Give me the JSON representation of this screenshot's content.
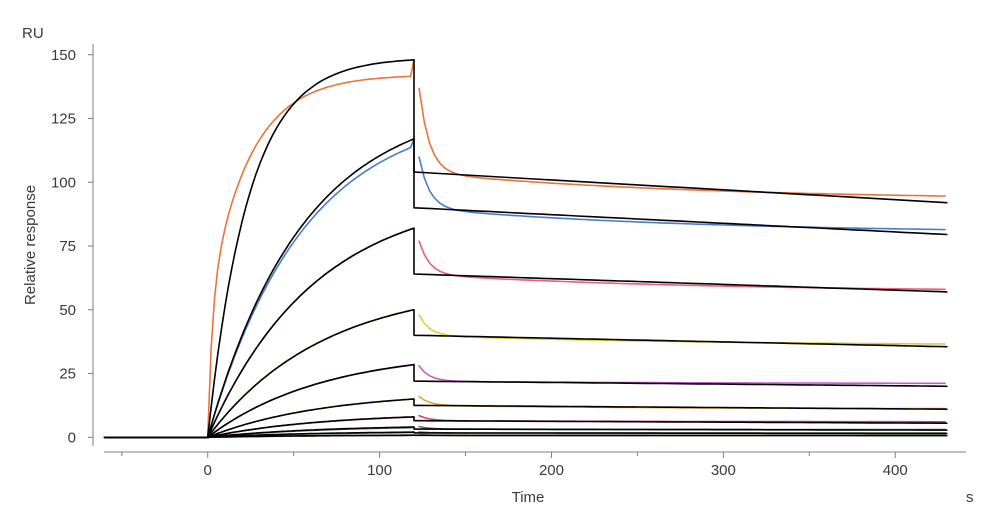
{
  "chart_data": {
    "type": "line",
    "title": "",
    "xlabel": "Time",
    "ylabel": "Relative response",
    "x_unit": "s",
    "y_unit": "RU",
    "xlim": [
      -65,
      440
    ],
    "ylim": [
      -5,
      155
    ],
    "x_ticks": [
      0,
      100,
      200,
      300,
      400
    ],
    "x_minor_ticks": [
      -50,
      50,
      150,
      250,
      350
    ],
    "y_ticks": [
      0,
      25,
      50,
      75,
      100,
      125,
      150
    ],
    "grid": false,
    "legend": "none",
    "association_start": 0,
    "association_end": 120,
    "curve_end": 430,
    "baseline_start": -60,
    "series": [
      {
        "color": "#e8743b",
        "fit_color": "#000000",
        "rmax": 139,
        "kobs": 0.042,
        "plateau_end": 93,
        "fit_plateau": 104,
        "fit_end": 92,
        "peak": 148,
        "spike": 137
      },
      {
        "color": "#4a7cc9",
        "fit_color": "#000000",
        "rmax": 129,
        "kobs": 0.018,
        "plateau_end": 80,
        "fit_plateau": 90,
        "fit_end": 79.5,
        "peak": 117,
        "spike": 110
      },
      {
        "color": "#e8607a",
        "fit_color": "#000000",
        "rmax": 96,
        "kobs": 0.016,
        "plateau_end": 57,
        "fit_plateau": 64,
        "fit_end": 57,
        "peak": 82,
        "spike": 77
      },
      {
        "color": "#d9cf3a",
        "fit_color": "#000000",
        "rmax": 60,
        "kobs": 0.015,
        "plateau_end": 36,
        "fit_plateau": 40,
        "fit_end": 35.5,
        "peak": 50,
        "spike": 48
      },
      {
        "color": "#c061c9",
        "fit_color": "#000000",
        "rmax": 34,
        "kobs": 0.015,
        "plateau_end": 21,
        "fit_plateau": 22,
        "fit_end": 20,
        "peak": 28.5,
        "spike": 28
      },
      {
        "color": "#e0a830",
        "fit_color": "#000000",
        "rmax": 18,
        "kobs": 0.015,
        "plateau_end": 11,
        "fit_plateau": 12.5,
        "fit_end": 11,
        "peak": 15,
        "spike": 16
      },
      {
        "color": "#d43a8a",
        "fit_color": "#000000",
        "rmax": 9.5,
        "kobs": 0.015,
        "plateau_end": 6,
        "fit_plateau": 6.5,
        "fit_end": 5.5,
        "peak": 8,
        "spike": 8.5
      },
      {
        "color": "#6a6a6a",
        "fit_color": "#000000",
        "rmax": 4.5,
        "kobs": 0.015,
        "plateau_end": 3,
        "fit_plateau": 3.2,
        "fit_end": 2.8,
        "peak": 4,
        "spike": 4.2
      },
      {
        "color": "#5b8f3a",
        "fit_color": "#000000",
        "rmax": 2.2,
        "kobs": 0.015,
        "plateau_end": 1.6,
        "fit_plateau": 1.7,
        "fit_end": 1.5,
        "peak": 2,
        "spike": 2.1
      },
      {
        "color": "#3a3a3a",
        "fit_color": "#000000",
        "rmax": 0.9,
        "kobs": 0.015,
        "plateau_end": 0.7,
        "fit_plateau": 0.75,
        "fit_end": 0.65,
        "peak": 0.8,
        "spike": 0.9
      }
    ]
  }
}
